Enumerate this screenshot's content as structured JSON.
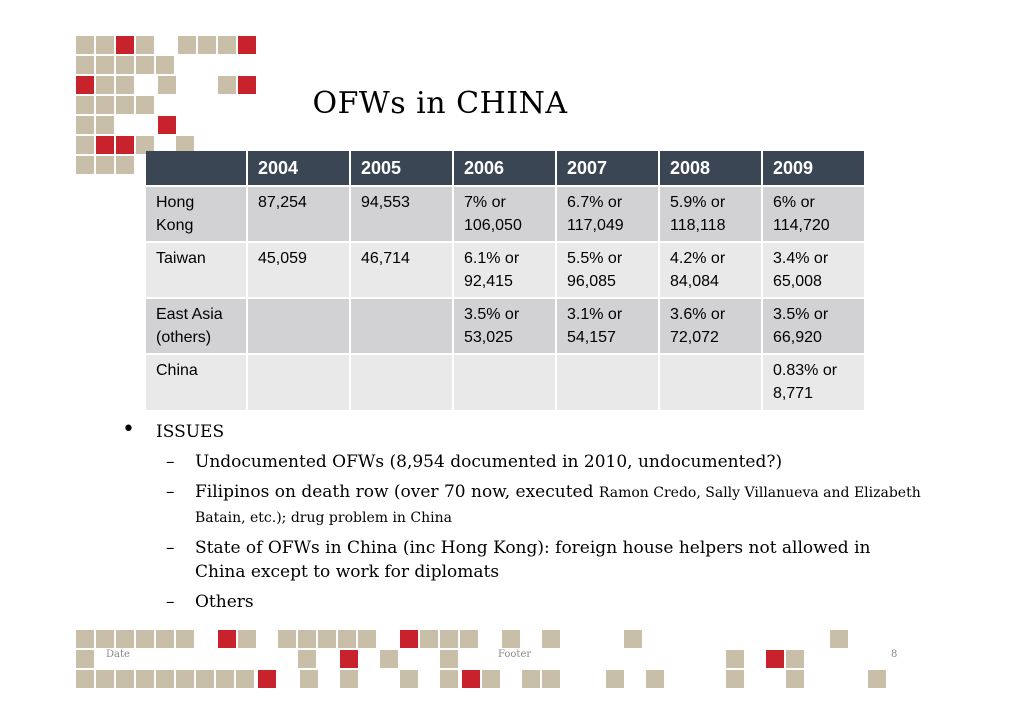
{
  "title": "OFWs in CHINA",
  "table": {
    "headers": [
      "",
      "2004",
      "2005",
      "2006",
      "2007",
      "2008",
      "2009"
    ],
    "rows": [
      {
        "label": [
          "Hong",
          "Kong"
        ],
        "cells": [
          [
            "87,254"
          ],
          [
            "94,553"
          ],
          [
            "7% or",
            "106,050"
          ],
          [
            "6.7% or",
            "117,049"
          ],
          [
            "5.9% or",
            "118,118"
          ],
          [
            "6% or",
            "114,720"
          ]
        ]
      },
      {
        "label": [
          "Taiwan"
        ],
        "cells": [
          [
            "45,059"
          ],
          [
            "46,714"
          ],
          [
            "6.1% or",
            "92,415"
          ],
          [
            "5.5% or",
            "96,085"
          ],
          [
            "4.2% or",
            "84,084"
          ],
          [
            "3.4% or",
            "65,008"
          ]
        ]
      },
      {
        "label": [
          "East Asia",
          "(others)"
        ],
        "cells": [
          [],
          [],
          [
            "3.5% or",
            "53,025"
          ],
          [
            "3.1% or",
            "54,157"
          ],
          [
            "3.6% or",
            "72,072"
          ],
          [
            "3.5% or",
            "66,920"
          ]
        ]
      },
      {
        "label": [
          "China"
        ],
        "cells": [
          [],
          [],
          [],
          [],
          [],
          [
            "0.83% or",
            "8,771"
          ]
        ]
      }
    ]
  },
  "bullets": {
    "bullet_char": "•",
    "dash_char": "–",
    "main": "ISSUES",
    "items": [
      {
        "text": "Undocumented OFWs (8,954 documented in 2010, undocumented?)"
      },
      {
        "text": "Filipinos on death row (over 70 now, executed ",
        "small": "Ramon Credo, Sally Villanueva and Elizabeth Batain, etc.); drug problem in China"
      },
      {
        "text": "State of OFWs in China (inc Hong Kong): foreign house helpers not allowed in China except to work for diplomats"
      },
      {
        "text": "Others"
      }
    ]
  },
  "footer": {
    "date": "Date",
    "center": "Footer",
    "page": "8"
  },
  "colors": {
    "square": "#c9bfa9",
    "square_red": "#c8232c",
    "header": "#3b4654"
  }
}
